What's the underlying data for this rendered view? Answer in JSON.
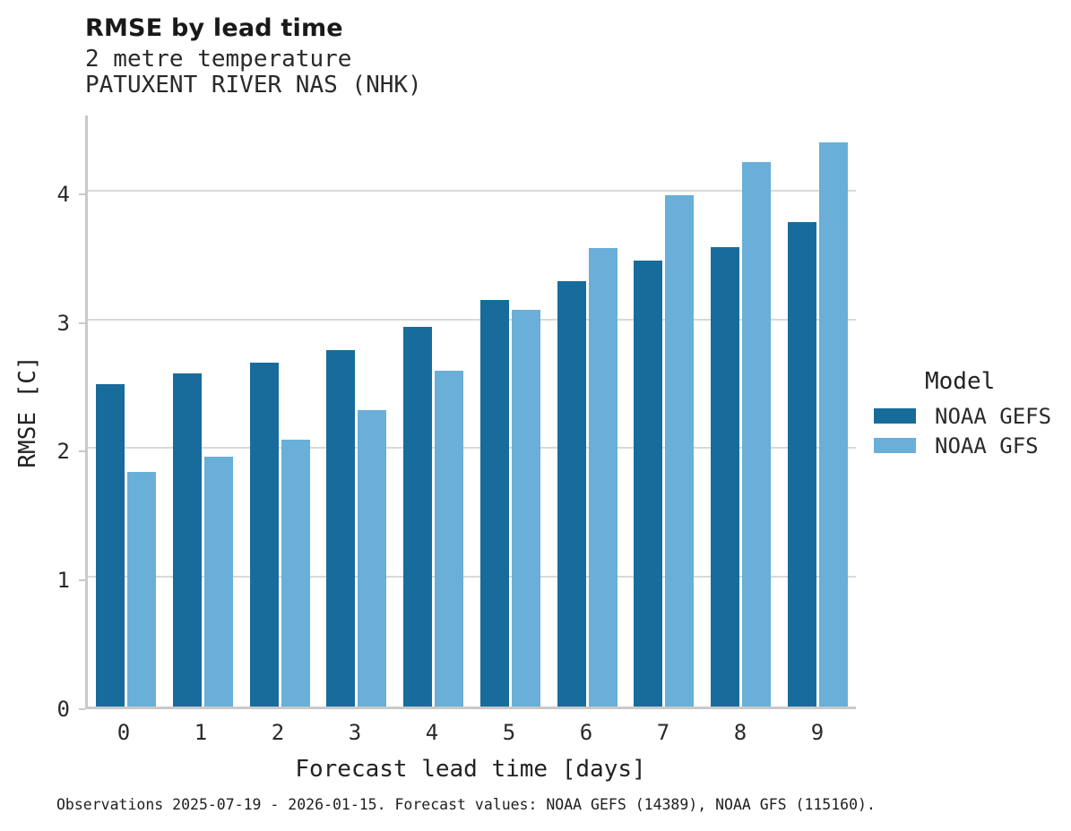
{
  "header": {
    "title": "RMSE by lead time",
    "subtitle": "2 metre temperature",
    "station": "PATUXENT RIVER NAS (NHK)"
  },
  "chart_data": {
    "type": "bar",
    "title": "RMSE by lead time",
    "subtitle": "2 metre temperature",
    "station": "PATUXENT RIVER NAS (NHK)",
    "xlabel": "Forecast lead time [days]",
    "ylabel": "RMSE [C]",
    "categories": [
      "0",
      "1",
      "2",
      "3",
      "4",
      "5",
      "6",
      "7",
      "8",
      "9"
    ],
    "series": [
      {
        "name": "NOAA GEFS",
        "color": "#176C9C",
        "values": [
          2.5,
          2.59,
          2.67,
          2.77,
          2.95,
          3.16,
          3.3,
          3.46,
          3.57,
          3.76
        ]
      },
      {
        "name": "NOAA GFS",
        "color": "#69AFD8",
        "values": [
          1.82,
          1.94,
          2.07,
          2.3,
          2.61,
          3.08,
          3.56,
          3.97,
          4.23,
          4.38
        ]
      }
    ],
    "yticks": [
      0,
      1,
      2,
      3,
      4
    ],
    "ylim": [
      0,
      4.61
    ],
    "grid": "horizontal",
    "gridline_color": "#d9d9d9",
    "axis_color": "#c9c9c9",
    "legend_title": "Model",
    "legend_position": "right"
  },
  "legend": {
    "title": "Model"
  },
  "footer": {
    "caption": "Observations 2025-07-19 - 2026-01-15. Forecast values: NOAA GEFS (14389), NOAA GFS (115160)."
  }
}
